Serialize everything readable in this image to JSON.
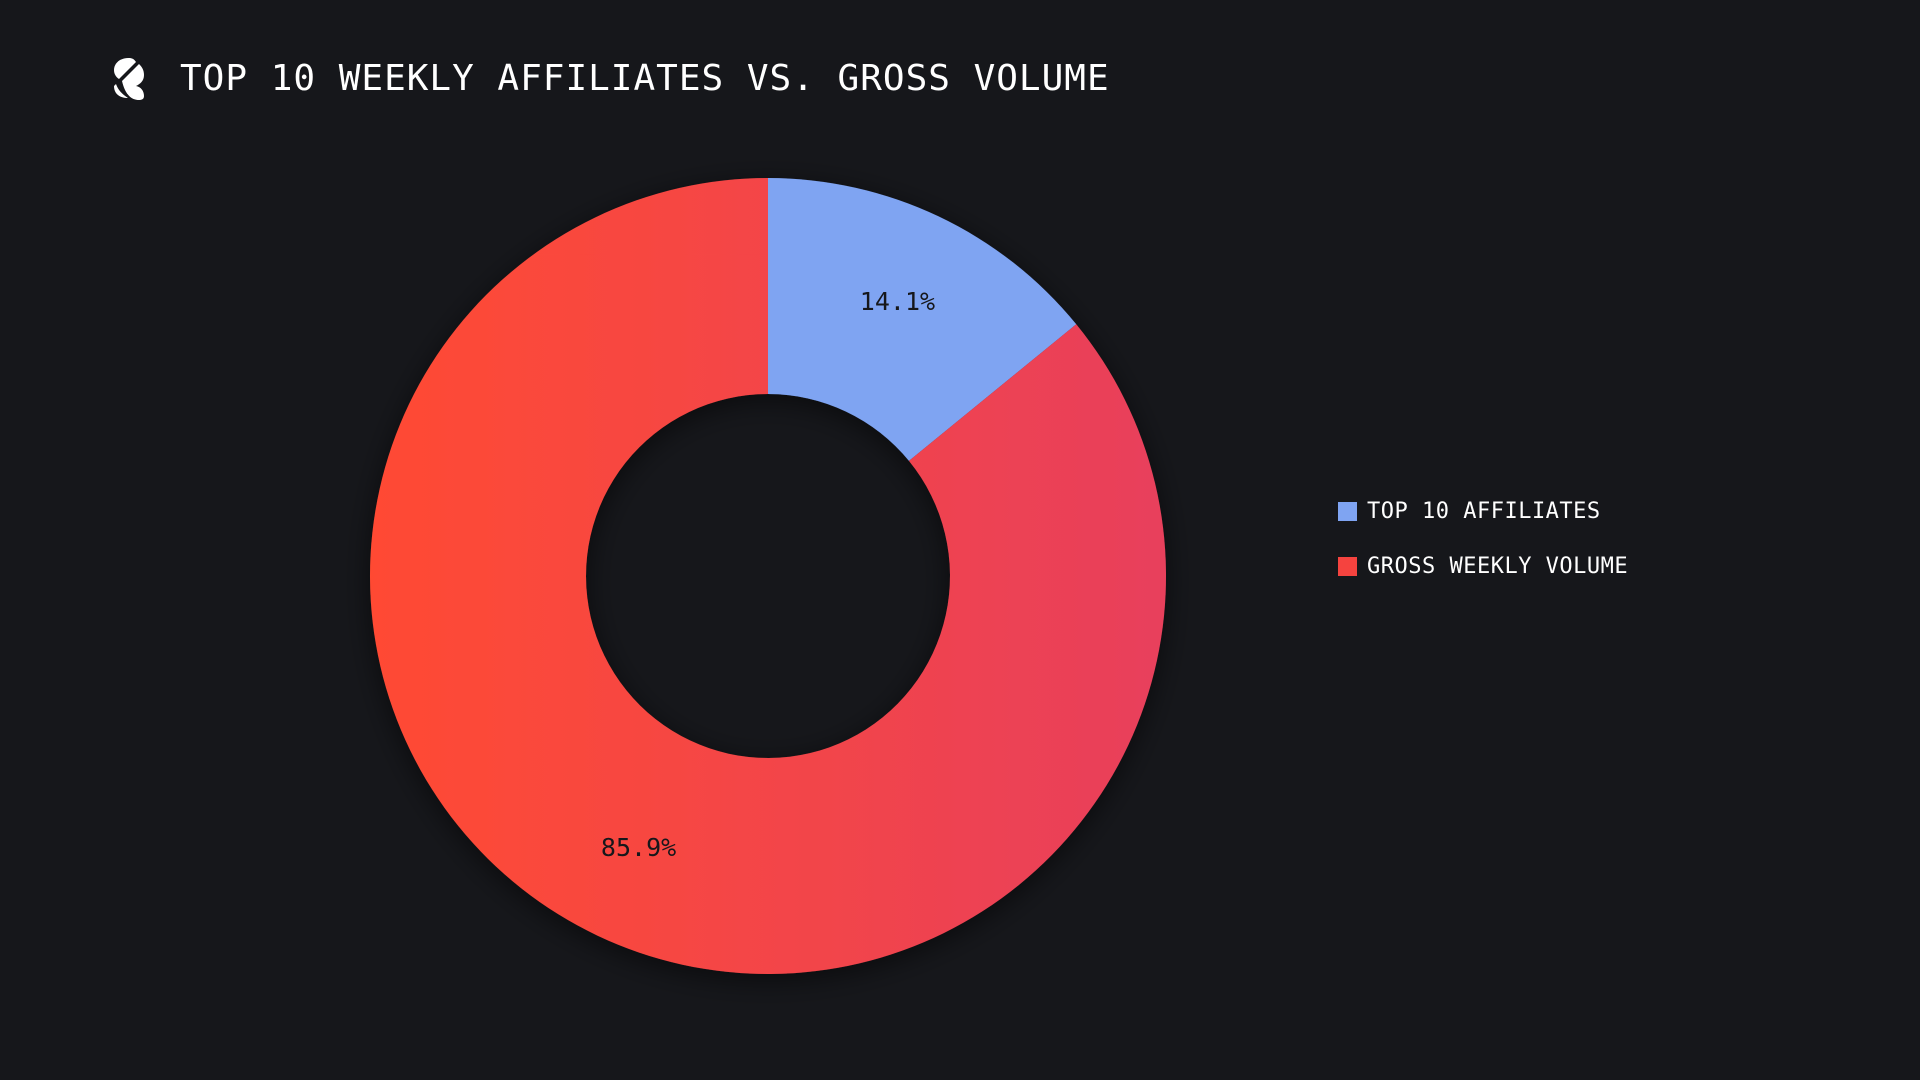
{
  "header": {
    "title": "TOP 10 WEEKLY AFFILIATES VS. GROSS VOLUME",
    "logo_icon": "s-slash-logo"
  },
  "colors": {
    "background": "#16171b",
    "affiliates": "#7fa4f2",
    "volume_start": "#ff4a33",
    "volume_end": "#e8405c"
  },
  "chart_data": {
    "type": "pie",
    "variant": "donut",
    "title": "TOP 10 WEEKLY AFFILIATES VS. GROSS VOLUME",
    "legend_position": "right",
    "slices": [
      {
        "name": "TOP 10 AFFILIATES",
        "value": 14.1,
        "label": "14.1%",
        "color": "#7fa4f2"
      },
      {
        "name": "GROSS WEEKLY VOLUME",
        "value": 85.9,
        "label": "85.9%",
        "color": "#f5433f"
      }
    ]
  }
}
